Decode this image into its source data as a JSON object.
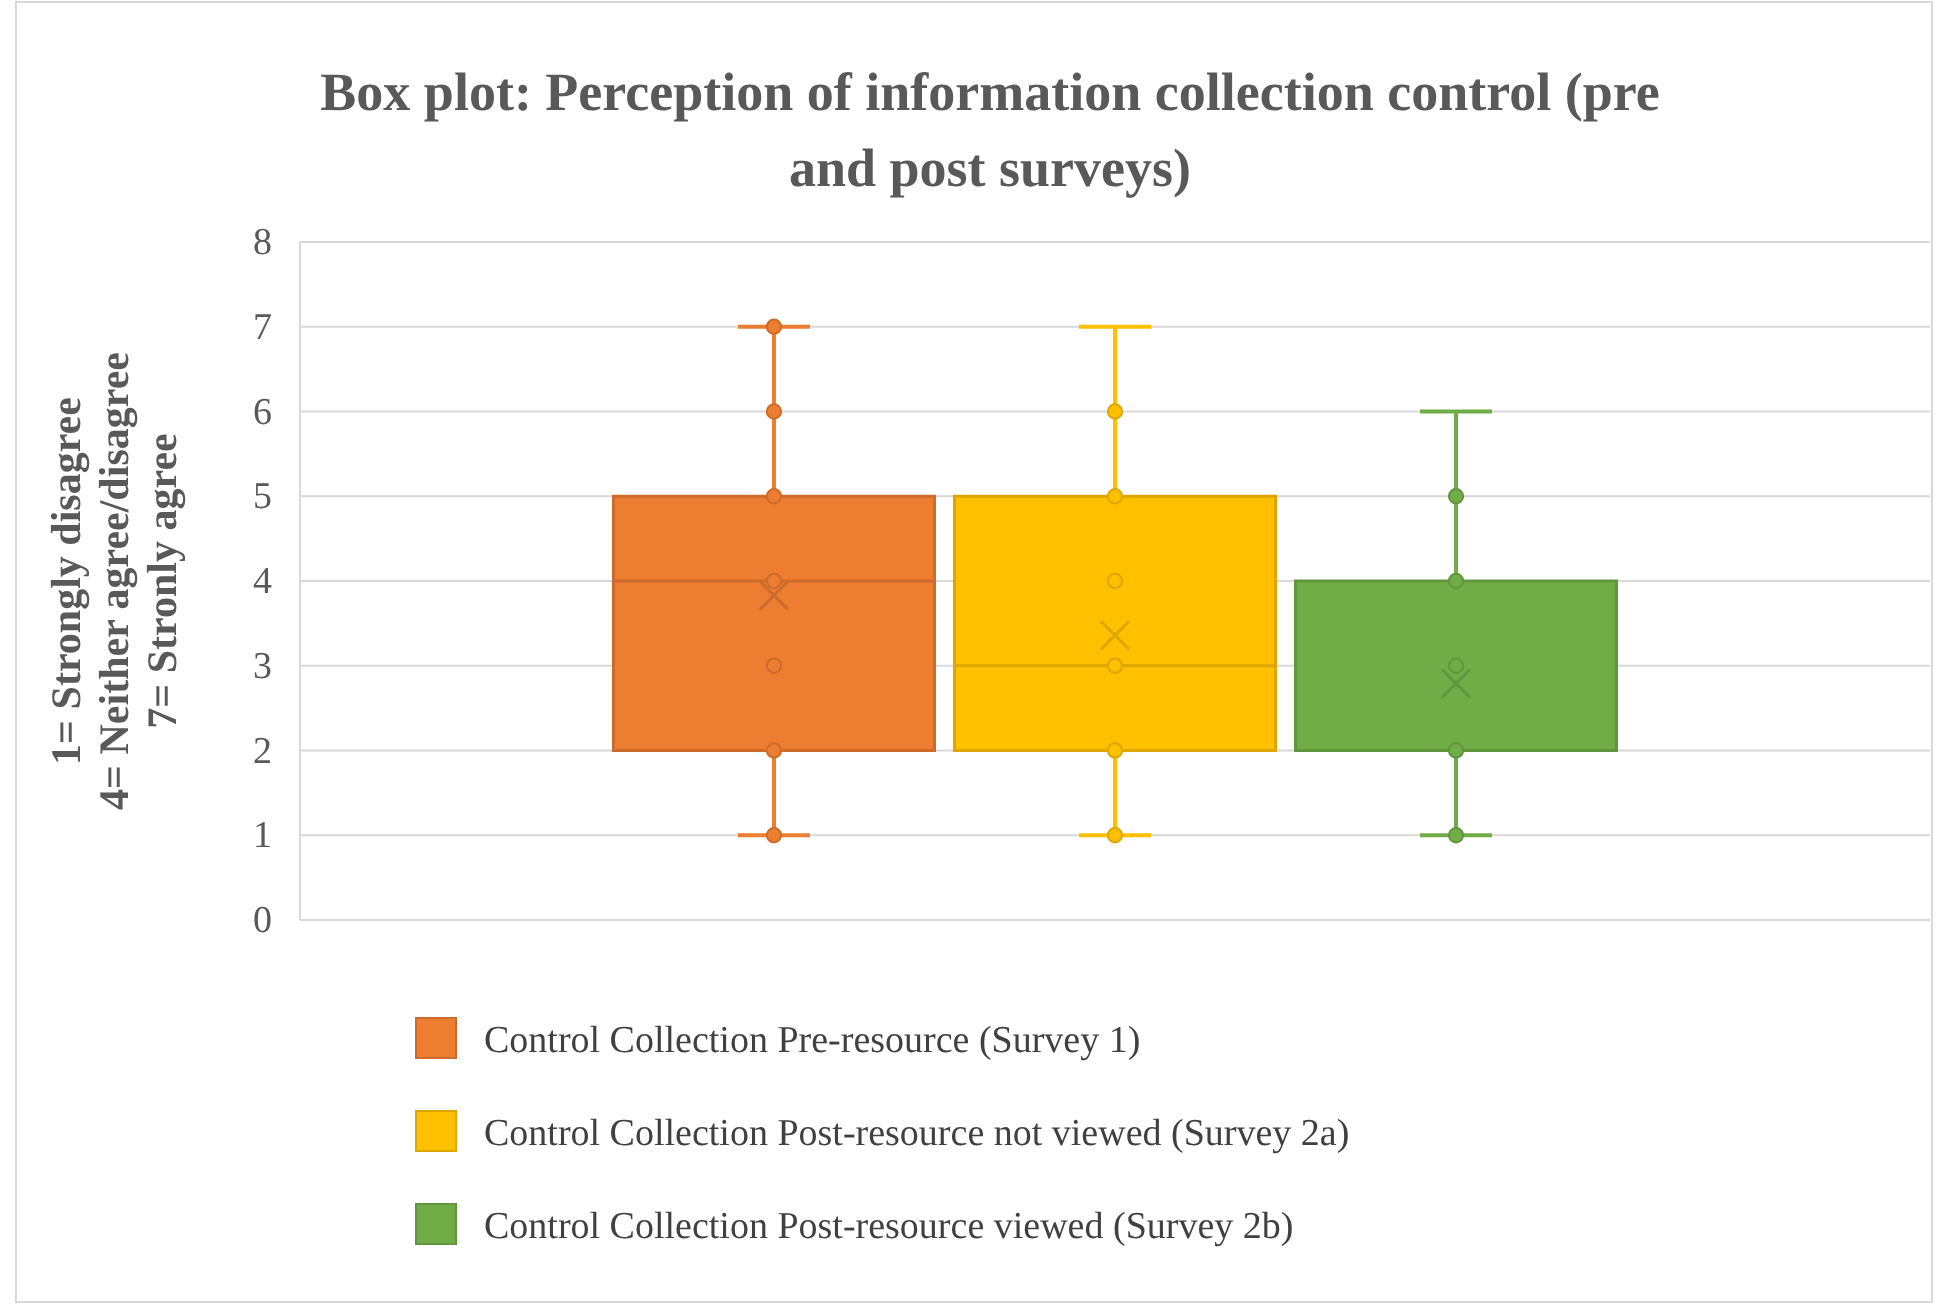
{
  "chart_data": {
    "type": "box",
    "title": "Box plot: Perception of information collection control (pre and post surveys)",
    "ylabel": "1= Strongly disagree\n4= Neither agree/disagree\n7= Stronly agree",
    "categories": [
      null
    ],
    "ylim": [
      0,
      8
    ],
    "yticks": [
      0,
      1,
      2,
      3,
      4,
      5,
      6,
      7,
      8
    ],
    "grid": "y",
    "legend": "bottom",
    "marker": "circle",
    "series": [
      {
        "name": "Control Collection Pre-resource (Survey 1)",
        "color": "#ed7d31",
        "boxes": [
          {
            "low": 1,
            "q1": 2,
            "median": 4,
            "q3": 5,
            "high": 7,
            "mean": 3.83,
            "outliers": [
              1,
              2,
              3,
              4,
              5,
              6,
              7
            ]
          }
        ]
      },
      {
        "name": "Control Collection Post-resource not viewed (Survey 2a)",
        "color": "#ffc000",
        "boxes": [
          {
            "low": 1,
            "q1": 2,
            "median": 3,
            "q3": 5,
            "high": 7,
            "mean": 3.36,
            "outliers": [
              1,
              2,
              3,
              4,
              5,
              6
            ]
          }
        ]
      },
      {
        "name": "Control Collection Post-resource viewed (Survey 2b)",
        "color": "#70ad47",
        "boxes": [
          {
            "low": 1,
            "q1": 2,
            "median": 2,
            "q3": 4,
            "high": 6,
            "mean": 2.79,
            "outliers": [
              1,
              2,
              3,
              4,
              5
            ]
          }
        ]
      }
    ]
  }
}
